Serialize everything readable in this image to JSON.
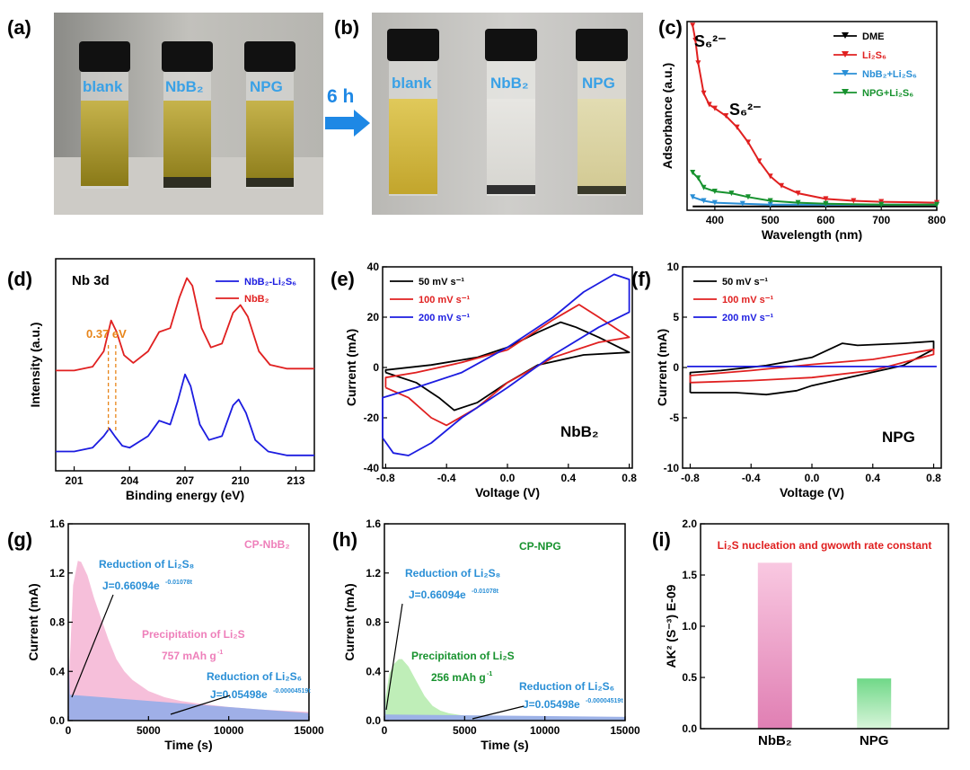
{
  "panels": {
    "a": {
      "label": "(a)",
      "vials": [
        "blank",
        "NbB₂",
        "NPG"
      ]
    },
    "b": {
      "label": "(b)",
      "vials": [
        "blank",
        "NbB₂",
        "NPG"
      ],
      "arrow_text": "6 h"
    },
    "c": {
      "label": "(c)"
    },
    "d": {
      "label": "(d)",
      "title": "Nb 3d",
      "annotation": "0.37 eV"
    },
    "e": {
      "label": "(e)",
      "sample": "NbB₂"
    },
    "f": {
      "label": "(f)",
      "sample": "NPG"
    },
    "g": {
      "label": "(g)"
    },
    "h": {
      "label": "(h)"
    },
    "i": {
      "label": "(i)"
    }
  },
  "colors": {
    "black": "#000000",
    "red": "#e02020",
    "blue": "#1c1ce0",
    "cyan": "#2a8fd6",
    "green": "#17922e",
    "pink": "#f5b8d6",
    "lightblue": "#9aaee8",
    "lightgreen": "#b8ecb0"
  },
  "chart_data": [
    {
      "id": "c",
      "type": "line",
      "xlabel": "Wavelength (nm)",
      "ylabel": "Adsorbance (a.u.)",
      "xlim": [
        350,
        800
      ],
      "xticks": [
        400,
        500,
        600,
        700,
        800
      ],
      "series": [
        {
          "name": "DME",
          "color": "#000000",
          "x": [
            360,
            400,
            500,
            600,
            700,
            800
          ],
          "y": [
            0.02,
            0.02,
            0.02,
            0.02,
            0.02,
            0.02
          ]
        },
        {
          "name": "Li₂S₆",
          "color": "#e02020",
          "x": [
            360,
            365,
            370,
            380,
            390,
            400,
            420,
            440,
            460,
            480,
            500,
            520,
            550,
            600,
            650,
            700,
            800
          ],
          "y": [
            0.98,
            0.9,
            0.78,
            0.62,
            0.56,
            0.54,
            0.5,
            0.44,
            0.36,
            0.26,
            0.18,
            0.13,
            0.09,
            0.06,
            0.05,
            0.045,
            0.04
          ]
        },
        {
          "name": "NbB₂+Li₂S₆",
          "color": "#2a8fd6",
          "x": [
            360,
            380,
            400,
            450,
            500,
            600,
            700,
            800
          ],
          "y": [
            0.07,
            0.05,
            0.04,
            0.035,
            0.03,
            0.03,
            0.03,
            0.03
          ]
        },
        {
          "name": "NPG+Li₂S₆",
          "color": "#17922e",
          "x": [
            360,
            370,
            380,
            400,
            430,
            460,
            500,
            550,
            600,
            700,
            800
          ],
          "y": [
            0.2,
            0.17,
            0.12,
            0.1,
            0.09,
            0.07,
            0.05,
            0.04,
            0.035,
            0.03,
            0.03
          ]
        }
      ],
      "annotations": [
        "S₆²⁻",
        "S₆²⁻"
      ]
    },
    {
      "id": "d",
      "type": "line",
      "xlabel": "Binding energy (eV)",
      "ylabel": "Intensity (a.u.)",
      "xlim": [
        200,
        214
      ],
      "xticks": [
        201,
        204,
        207,
        210,
        213
      ],
      "series": [
        {
          "name": "NbB₂-Li₂S₆",
          "color": "#1c1ce0",
          "x": [
            200,
            201,
            202,
            202.6,
            202.9,
            203.2,
            203.6,
            204,
            205,
            205.6,
            206.2,
            206.6,
            207,
            207.3,
            207.8,
            208.3,
            209,
            209.6,
            209.9,
            210.3,
            210.8,
            211.5,
            212.5,
            214
          ],
          "y": [
            0.1,
            0.1,
            0.12,
            0.18,
            0.22,
            0.18,
            0.13,
            0.12,
            0.18,
            0.26,
            0.24,
            0.36,
            0.5,
            0.44,
            0.24,
            0.16,
            0.18,
            0.34,
            0.37,
            0.3,
            0.16,
            0.1,
            0.08,
            0.08
          ]
        },
        {
          "name": "NbB₂",
          "color": "#e02020",
          "x": [
            200,
            201,
            202,
            202.6,
            203.0,
            203.3,
            203.7,
            204.2,
            205,
            205.6,
            206.2,
            206.7,
            207.1,
            207.4,
            207.9,
            208.4,
            209,
            209.6,
            210.0,
            210.4,
            211,
            211.6,
            212.5,
            214
          ],
          "y": [
            0.52,
            0.52,
            0.54,
            0.62,
            0.78,
            0.72,
            0.6,
            0.56,
            0.62,
            0.72,
            0.74,
            0.9,
            1.0,
            0.96,
            0.74,
            0.64,
            0.66,
            0.82,
            0.86,
            0.8,
            0.62,
            0.55,
            0.53,
            0.53
          ]
        }
      ]
    },
    {
      "id": "e",
      "type": "line",
      "xlabel": "Voltage (V)",
      "ylabel": "Current (mA)",
      "xlim": [
        -0.82,
        0.82
      ],
      "ylim": [
        -40,
        40
      ],
      "xticks": [
        -0.8,
        -0.4,
        0.0,
        0.4,
        0.8
      ],
      "yticks": [
        -40,
        -20,
        0,
        20,
        40
      ],
      "series": [
        {
          "name": "50 mV s⁻¹",
          "color": "#000000",
          "x": [
            -0.8,
            -0.6,
            -0.45,
            -0.35,
            -0.2,
            0.0,
            0.2,
            0.5,
            0.8,
            0.8,
            0.6,
            0.45,
            0.35,
            0.2,
            0.0,
            -0.2,
            -0.5,
            -0.8,
            -0.8
          ],
          "y": [
            -2,
            -6,
            -12,
            -17,
            -14,
            -6,
            1,
            5,
            6,
            6,
            12,
            16,
            18,
            14,
            8,
            4,
            1,
            -1,
            -2
          ]
        },
        {
          "name": "100 mV s⁻¹",
          "color": "#e02020",
          "x": [
            -0.8,
            -0.65,
            -0.5,
            -0.4,
            -0.2,
            0.0,
            0.3,
            0.6,
            0.8,
            0.8,
            0.6,
            0.47,
            0.3,
            0.0,
            -0.3,
            -0.6,
            -0.8,
            -0.8
          ],
          "y": [
            -8,
            -12,
            -20,
            -23,
            -16,
            -6,
            4,
            10,
            12,
            12,
            20,
            25,
            19,
            7,
            2,
            -2,
            -4,
            -8
          ]
        },
        {
          "name": "200 mV s⁻¹",
          "color": "#1c1ce0",
          "x": [
            -0.82,
            -0.75,
            -0.65,
            -0.5,
            -0.3,
            0.0,
            0.3,
            0.6,
            0.8,
            0.8,
            0.7,
            0.5,
            0.3,
            0.0,
            -0.3,
            -0.6,
            -0.82,
            -0.82
          ],
          "y": [
            -28,
            -34,
            -35,
            -30,
            -20,
            -8,
            5,
            16,
            22,
            35,
            37,
            30,
            20,
            8,
            -2,
            -8,
            -12,
            -28
          ]
        }
      ],
      "sample_label": "NbB₂"
    },
    {
      "id": "f",
      "type": "line",
      "xlabel": "Voltage (V)",
      "ylabel": "Current (mA)",
      "xlim": [
        -0.85,
        0.85
      ],
      "ylim": [
        -10,
        10
      ],
      "xticks": [
        -0.8,
        -0.4,
        0.0,
        0.4,
        0.8
      ],
      "yticks": [
        -10,
        -5,
        0,
        5,
        10
      ],
      "series": [
        {
          "name": "50 mV s⁻¹",
          "color": "#000000",
          "x": [
            -0.8,
            -0.5,
            -0.3,
            -0.1,
            0.0,
            0.3,
            0.6,
            0.8,
            0.8,
            0.6,
            0.3,
            0.2,
            0.0,
            -0.3,
            -0.6,
            -0.8,
            -0.8
          ],
          "y": [
            -2.5,
            -2.5,
            -2.7,
            -2.3,
            -1.8,
            -0.8,
            0.2,
            1.8,
            2.6,
            2.4,
            2.2,
            2.4,
            1.0,
            0.2,
            -0.3,
            -0.5,
            -2.5
          ]
        },
        {
          "name": "100 mV s⁻¹",
          "color": "#e02020",
          "x": [
            -0.8,
            -0.4,
            0.0,
            0.4,
            0.8,
            0.8,
            0.4,
            0.0,
            -0.4,
            -0.8,
            -0.8
          ],
          "y": [
            -1.5,
            -1.3,
            -1.0,
            -0.3,
            1.3,
            1.8,
            0.8,
            0.3,
            -0.3,
            -0.8,
            -1.5
          ]
        },
        {
          "name": "200 mV s⁻¹",
          "color": "#1c1ce0",
          "x": [
            -0.82,
            0.82
          ],
          "y": [
            0.1,
            0.1
          ]
        }
      ],
      "sample_label": "NPG"
    },
    {
      "id": "g",
      "type": "area",
      "xlabel": "Time (s)",
      "ylabel": "Current (mA)",
      "xlim": [
        0,
        15000
      ],
      "ylim": [
        0,
        1.6
      ],
      "xticks": [
        0,
        5000,
        10000,
        15000
      ],
      "yticks": [
        0.0,
        0.4,
        0.8,
        1.2,
        1.6
      ],
      "series": [
        {
          "name": "measured",
          "color": "#f5b8d6",
          "x": [
            0,
            300,
            600,
            800,
            1200,
            1600,
            2000,
            2500,
            3000,
            3500,
            4000,
            5000,
            6000,
            7000,
            8000,
            10000,
            12000,
            15000
          ],
          "y": [
            0.2,
            1.1,
            1.3,
            1.29,
            1.18,
            1.0,
            0.85,
            0.66,
            0.5,
            0.4,
            0.33,
            0.24,
            0.19,
            0.16,
            0.14,
            0.11,
            0.09,
            0.07
          ]
        },
        {
          "name": "fit",
          "color": "#9aaee8",
          "x": [
            0,
            100,
            15000
          ],
          "y": [
            0.65,
            0.21,
            0.06
          ]
        }
      ],
      "title": "CP-NbB₂",
      "annotations": {
        "red1": "Reduction of Li₂S₈",
        "eq1": "J=0.66094e",
        "exp1": "-0.01078t",
        "prec": "Precipitation of Li₂S",
        "cap": "757 mAh g",
        "cap_sup": "-1",
        "red2": "Reduction of Li₂S₆",
        "eq2": "J=0.05498e",
        "exp2": "-0.00004519t"
      }
    },
    {
      "id": "h",
      "type": "area",
      "xlabel": "Time (s)",
      "ylabel": "Current (mA)",
      "xlim": [
        0,
        15000
      ],
      "ylim": [
        0,
        1.6
      ],
      "xticks": [
        0,
        5000,
        10000,
        15000
      ],
      "yticks": [
        0.0,
        0.4,
        0.8,
        1.2,
        1.6
      ],
      "series": [
        {
          "name": "measured",
          "color": "#b8ecb0",
          "x": [
            0,
            300,
            600,
            900,
            1100,
            1500,
            2000,
            2500,
            3000,
            3500,
            4000,
            5000,
            7000,
            10000,
            15000
          ],
          "y": [
            0.12,
            0.38,
            0.46,
            0.5,
            0.5,
            0.44,
            0.32,
            0.2,
            0.12,
            0.08,
            0.06,
            0.04,
            0.035,
            0.03,
            0.025
          ]
        },
        {
          "name": "fit",
          "color": "#9aaee8",
          "x": [
            0,
            80,
            15000
          ],
          "y": [
            0.4,
            0.05,
            0.03
          ]
        }
      ],
      "title": "CP-NPG",
      "annotations": {
        "red1": "Reduction of Li₂S₈",
        "eq1": "J=0.66094e",
        "exp1": "-0.01078t",
        "prec": "Precipitation of Li₂S",
        "cap": "256 mAh g",
        "cap_sup": "-1",
        "red2": "Reduction of Li₂S₆",
        "eq2": "J=0.05498e",
        "exp2": "-0.00004519t"
      }
    },
    {
      "id": "i",
      "type": "bar",
      "ylabel": "AK² (S⁻³) E-09",
      "ylim": [
        0,
        2.0
      ],
      "yticks": [
        0.0,
        0.5,
        1.0,
        1.5,
        2.0
      ],
      "categories": [
        "NbB₂",
        "NPG"
      ],
      "values": [
        1.62,
        0.49
      ],
      "colors": [
        "#e889bb",
        "#74d98a"
      ],
      "title": "Li₂S nucleation and gwowth rate constant"
    }
  ]
}
